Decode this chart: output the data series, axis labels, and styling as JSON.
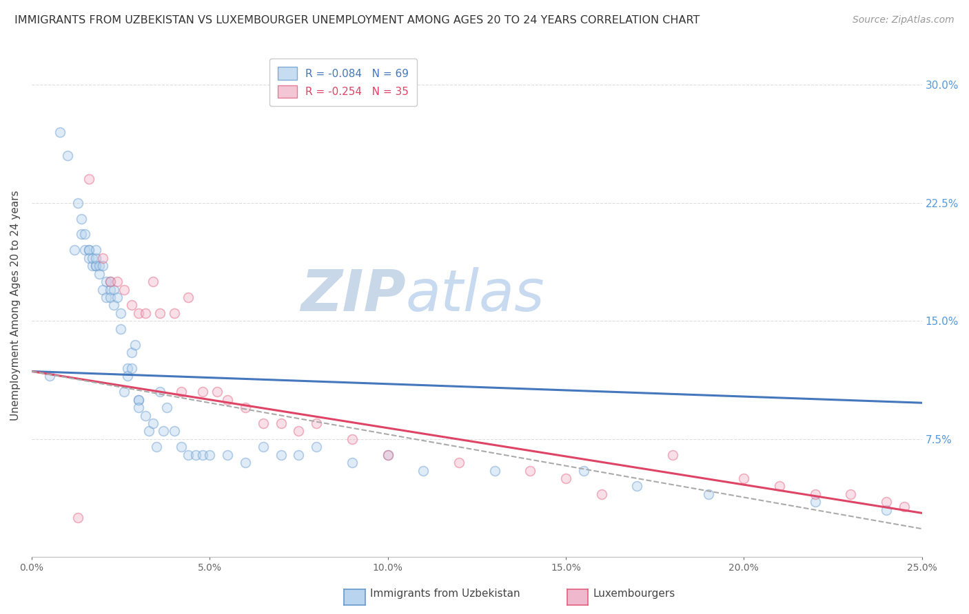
{
  "title": "IMMIGRANTS FROM UZBEKISTAN VS LUXEMBOURGER UNEMPLOYMENT AMONG AGES 20 TO 24 YEARS CORRELATION CHART",
  "source": "Source: ZipAtlas.com",
  "ylabel": "Unemployment Among Ages 20 to 24 years",
  "xlim": [
    0.0,
    0.25
  ],
  "ylim": [
    0.0,
    0.32
  ],
  "xtick_labels": [
    "0.0%",
    "5.0%",
    "10.0%",
    "15.0%",
    "20.0%",
    "25.0%"
  ],
  "xtick_vals": [
    0.0,
    0.05,
    0.1,
    0.15,
    0.2,
    0.25
  ],
  "ytick_labels_right": [
    "7.5%",
    "15.0%",
    "22.5%",
    "30.0%"
  ],
  "ytick_vals_right": [
    0.075,
    0.15,
    0.225,
    0.3
  ],
  "legend_label1": "R = -0.084   N = 69",
  "legend_label2": "R = -0.254   N = 35",
  "series1_facecolor": "#b8d4ee",
  "series1_edgecolor": "#6699cc",
  "series2_facecolor": "#f0b8cc",
  "series2_edgecolor": "#e06080",
  "trendline1_color": "#4477bb",
  "trendline2_color": "#dd4466",
  "trendline_dashed_color": "#aaaaaa",
  "watermark_zip_color": "#c8d8e8",
  "watermark_atlas_color": "#c8daf0",
  "background_color": "#ffffff",
  "grid_color": "#dddddd",
  "scatter1_x": [
    0.005,
    0.008,
    0.01,
    0.012,
    0.013,
    0.014,
    0.014,
    0.015,
    0.015,
    0.016,
    0.016,
    0.016,
    0.017,
    0.017,
    0.018,
    0.018,
    0.018,
    0.018,
    0.019,
    0.019,
    0.02,
    0.02,
    0.021,
    0.021,
    0.022,
    0.022,
    0.022,
    0.023,
    0.023,
    0.024,
    0.025,
    0.025,
    0.026,
    0.027,
    0.027,
    0.028,
    0.028,
    0.029,
    0.03,
    0.03,
    0.03,
    0.032,
    0.033,
    0.034,
    0.035,
    0.036,
    0.037,
    0.038,
    0.04,
    0.042,
    0.044,
    0.046,
    0.048,
    0.05,
    0.055,
    0.06,
    0.065,
    0.07,
    0.075,
    0.08,
    0.09,
    0.1,
    0.11,
    0.13,
    0.155,
    0.17,
    0.19,
    0.22,
    0.24
  ],
  "scatter1_y": [
    0.115,
    0.27,
    0.255,
    0.195,
    0.225,
    0.215,
    0.205,
    0.195,
    0.205,
    0.195,
    0.195,
    0.19,
    0.185,
    0.19,
    0.185,
    0.185,
    0.19,
    0.195,
    0.185,
    0.18,
    0.185,
    0.17,
    0.175,
    0.165,
    0.17,
    0.175,
    0.165,
    0.16,
    0.17,
    0.165,
    0.145,
    0.155,
    0.105,
    0.12,
    0.115,
    0.12,
    0.13,
    0.135,
    0.1,
    0.1,
    0.095,
    0.09,
    0.08,
    0.085,
    0.07,
    0.105,
    0.08,
    0.095,
    0.08,
    0.07,
    0.065,
    0.065,
    0.065,
    0.065,
    0.065,
    0.06,
    0.07,
    0.065,
    0.065,
    0.07,
    0.06,
    0.065,
    0.055,
    0.055,
    0.055,
    0.045,
    0.04,
    0.035,
    0.03
  ],
  "scatter2_x": [
    0.013,
    0.016,
    0.02,
    0.022,
    0.024,
    0.026,
    0.028,
    0.03,
    0.032,
    0.034,
    0.036,
    0.04,
    0.042,
    0.044,
    0.048,
    0.052,
    0.055,
    0.06,
    0.065,
    0.07,
    0.075,
    0.08,
    0.09,
    0.1,
    0.12,
    0.14,
    0.15,
    0.16,
    0.18,
    0.2,
    0.21,
    0.22,
    0.23,
    0.24,
    0.245
  ],
  "scatter2_y": [
    0.025,
    0.24,
    0.19,
    0.175,
    0.175,
    0.17,
    0.16,
    0.155,
    0.155,
    0.175,
    0.155,
    0.155,
    0.105,
    0.165,
    0.105,
    0.105,
    0.1,
    0.095,
    0.085,
    0.085,
    0.08,
    0.085,
    0.075,
    0.065,
    0.06,
    0.055,
    0.05,
    0.04,
    0.065,
    0.05,
    0.045,
    0.04,
    0.04,
    0.035,
    0.032
  ],
  "trendline1_x0": 0.0,
  "trendline1_x1": 0.25,
  "trendline1_y0": 0.118,
  "trendline1_y1": 0.098,
  "trendline2_x0": 0.0,
  "trendline2_x1": 0.25,
  "trendline2_y0": 0.118,
  "trendline2_y1": 0.028,
  "trendline_dashed_x0": 0.0,
  "trendline_dashed_x1": 0.25,
  "trendline_dashed_y0": 0.118,
  "trendline_dashed_y1": 0.018,
  "title_fontsize": 11.5,
  "source_fontsize": 10,
  "axis_label_fontsize": 11,
  "tick_fontsize": 10,
  "legend_fontsize": 11,
  "watermark_fontsize_zip": 60,
  "watermark_fontsize_atlas": 60,
  "dot_size": 100,
  "dot_alpha": 0.45,
  "dot_linewidth": 1.2
}
